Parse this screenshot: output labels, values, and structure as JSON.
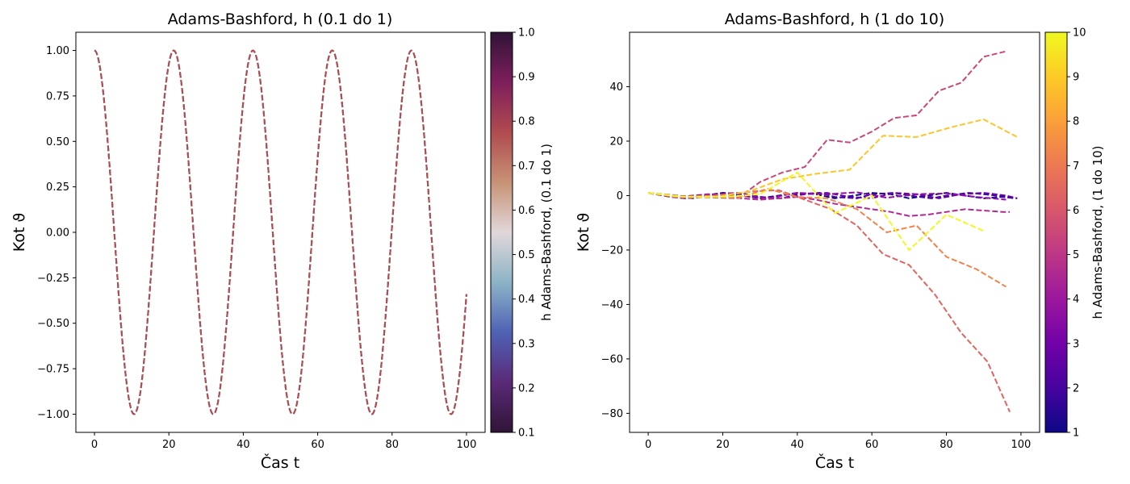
{
  "chart_data": [
    {
      "type": "line",
      "title": "Adams-Bashford, h (0.1 do 1)",
      "xlabel": "Čas t",
      "ylabel": "Kot ϑ",
      "xlim": [
        -5,
        105
      ],
      "ylim": [
        -1.1,
        1.1
      ],
      "xticks": [
        "0",
        "20",
        "40",
        "60",
        "80",
        "100"
      ],
      "yticks": [
        "1.00",
        "0.75",
        "0.50",
        "0.25",
        "0.00",
        "−0.25",
        "−0.50",
        "−0.75",
        "−1.00"
      ],
      "grid": false,
      "line_style": "dashed",
      "series_description": "cos(2π t / 21.3), t from 0 to 100; one curve per h, all overlapping",
      "period": 21.3,
      "x_range": [
        0,
        100
      ],
      "colorbar": {
        "label": "h Adams-Bashford, (0.1 do 1)",
        "range": [
          0.1,
          1.0
        ],
        "ticks": [
          "0.1",
          "0.2",
          "0.3",
          "0.4",
          "0.5",
          "0.6",
          "0.7",
          "0.8",
          "0.9",
          "1.0"
        ],
        "colormap": [
          "#2f1436",
          "#5a2a78",
          "#4f62b5",
          "#8cb4c6",
          "#e1d7da",
          "#c79276",
          "#b04b4f",
          "#7e1e5c",
          "#2f1436"
        ]
      }
    },
    {
      "type": "line",
      "title": "Adams-Bashford, h (1 do 10)",
      "xlabel": "Čas t",
      "ylabel": "Kot ϑ",
      "xlim": [
        -5,
        105
      ],
      "ylim": [
        -87,
        60
      ],
      "xticks": [
        "0",
        "20",
        "40",
        "60",
        "80",
        "100"
      ],
      "yticks": [
        "40",
        "20",
        "0",
        "−20",
        "−40",
        "−60",
        "−80"
      ],
      "grid": false,
      "line_style": "dashed",
      "series": [
        {
          "h": 1,
          "color": "#0d0887",
          "x": [
            0,
            5,
            10,
            15,
            20,
            25,
            30,
            35,
            40,
            45,
            50,
            55,
            60,
            65,
            70,
            75,
            80,
            85,
            90,
            95,
            99
          ],
          "y": [
            1,
            0,
            -1,
            0,
            1,
            0,
            -1,
            0,
            1,
            0.5,
            -1,
            0,
            1,
            0.5,
            -1,
            0,
            1,
            0,
            -1,
            -0.5,
            -1
          ]
        },
        {
          "h": 2,
          "color": "#41049d",
          "x": [
            0,
            6,
            10,
            16,
            20,
            26,
            30,
            36,
            40,
            46,
            50,
            56,
            60,
            66,
            70,
            76,
            80,
            86,
            90,
            96,
            98
          ],
          "y": [
            1,
            -0.5,
            -1,
            0,
            1,
            0.5,
            -0.5,
            -1,
            0.5,
            1,
            -0.5,
            -1,
            0.5,
            1,
            0,
            -1,
            0,
            1,
            0.5,
            -0.5,
            -1
          ]
        },
        {
          "h": 3,
          "color": "#6a00a8",
          "x": [
            0,
            6,
            12,
            18,
            24,
            30,
            36,
            42,
            48,
            54,
            60,
            66,
            72,
            78,
            84,
            90,
            96,
            99
          ],
          "y": [
            1,
            0,
            -1,
            0.5,
            1,
            -0.5,
            -1,
            0.5,
            1,
            -0.5,
            -1,
            1,
            0.5,
            -1,
            0.5,
            1,
            0,
            -1
          ]
        },
        {
          "h": 4,
          "color": "#8f0da4",
          "x": [
            0,
            8,
            16,
            24,
            32,
            40,
            48,
            56,
            64,
            72,
            80,
            88,
            96
          ],
          "y": [
            1,
            -0.5,
            0.5,
            0,
            -1,
            1,
            0.5,
            1.2,
            -0.8,
            0.5,
            0.8,
            -0.5,
            -1.5
          ]
        },
        {
          "h": 5,
          "color": "#b12a90",
          "x": [
            0,
            5,
            10,
            15,
            20,
            25,
            30,
            35,
            40,
            45,
            50,
            55,
            60,
            65,
            70,
            75,
            80,
            85,
            90,
            95,
            97
          ],
          "y": [
            1,
            0,
            -1,
            -0.5,
            0,
            -1,
            -1.5,
            -1,
            -0.5,
            -1.5,
            -3,
            -4,
            -5,
            -6,
            -7.5,
            -7,
            -6,
            -5,
            -5.5,
            -6,
            -6
          ]
        },
        {
          "h": 6,
          "color": "#cc4778",
          "x": [
            0,
            12,
            24,
            30,
            36,
            42,
            48,
            54,
            60,
            66,
            72,
            78,
            84,
            90,
            96
          ],
          "y": [
            1,
            -0.5,
            -1,
            5,
            8.5,
            10.5,
            20.5,
            19.5,
            23.5,
            28.5,
            29.5,
            38.5,
            41.5,
            51,
            53
          ]
        },
        {
          "h": 7,
          "color": "#e16462",
          "x": [
            0,
            7,
            14,
            21,
            28,
            35,
            42,
            49,
            56,
            63,
            70,
            77,
            84,
            91,
            97
          ],
          "y": [
            1,
            -0.5,
            -0.5,
            0.5,
            1.5,
            2,
            -1.5,
            -5,
            -11,
            -21.5,
            -25.5,
            -36.5,
            -50.5,
            -61,
            -79.5
          ]
        },
        {
          "h": 8,
          "color": "#f2844b",
          "x": [
            0,
            8,
            16,
            24,
            32,
            40,
            48,
            56,
            64,
            72,
            80,
            88,
            96
          ],
          "y": [
            1,
            -0.5,
            0,
            -1,
            2.5,
            -0.5,
            -1,
            -5,
            -13.5,
            -11,
            -22.5,
            -27,
            -33.5
          ]
        },
        {
          "h": 9,
          "color": "#fdc527",
          "x": [
            0,
            9,
            18,
            27,
            36,
            45,
            54,
            63,
            72,
            81,
            90,
            99
          ],
          "y": [
            1,
            -0.5,
            -0.5,
            1.5,
            6,
            8,
            9.5,
            22,
            21.5,
            25,
            28,
            21.5
          ]
        },
        {
          "h": 10,
          "color": "#f0f921",
          "x": [
            0,
            10,
            20,
            30,
            40,
            50,
            60,
            70,
            80,
            90
          ],
          "y": [
            1,
            -0.5,
            -0.5,
            0.5,
            8.5,
            -6.5,
            0,
            -20,
            -7,
            -13
          ]
        }
      ],
      "colorbar": {
        "label": "h Adams-Bashford, (1 do 10)",
        "range": [
          1,
          10
        ],
        "ticks": [
          "1",
          "2",
          "3",
          "4",
          "5",
          "6",
          "7",
          "8",
          "9",
          "10"
        ],
        "colormap": [
          "#0d0887",
          "#46039f",
          "#7201a8",
          "#9c179e",
          "#bd3786",
          "#d8576b",
          "#ed7953",
          "#fb9f3a",
          "#fdca26",
          "#f0f921"
        ]
      }
    }
  ]
}
